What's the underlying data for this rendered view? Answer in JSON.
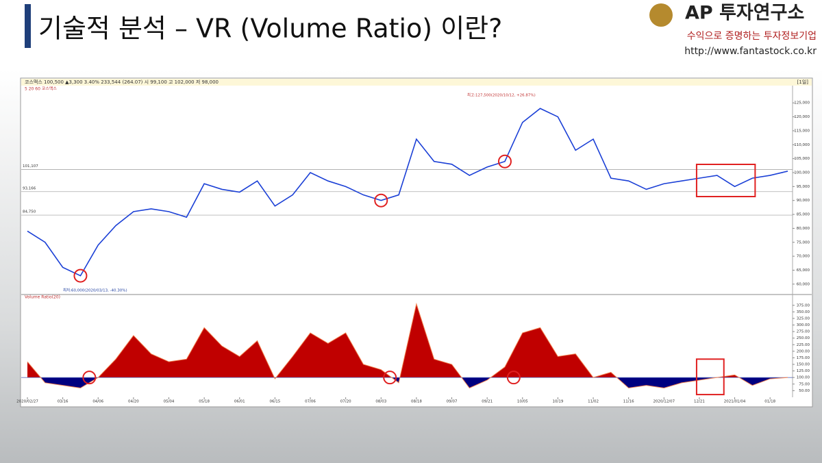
{
  "slide": {
    "title": "기술적 분석 – VR (Volume Ratio) 이란?",
    "logo_name": "AP 투자연구소",
    "logo_tagline": "수익으로 증명하는 투자정보기업",
    "url": "http://www.fantastock.co.kr"
  },
  "chart_data": [
    {
      "type": "line",
      "title": "코스맥스 100,500 ▲3,300 3.40% 233,544 (264.07) 시 99,100 고 102,000 저 98,000",
      "legend": "5 20 60 코스맥스",
      "period": "[1일]",
      "color": "#1a3fd6",
      "values": [
        79000,
        75000,
        66000,
        63000,
        74000,
        81000,
        86000,
        87000,
        86000,
        84000,
        96000,
        94000,
        93000,
        97000,
        88000,
        92000,
        100000,
        97000,
        95000,
        92000,
        90000,
        92000,
        112000,
        104000,
        103000,
        99000,
        102000,
        104000,
        118000,
        123000,
        120000,
        108000,
        112000,
        98000,
        97000,
        94000,
        96000,
        97000,
        98000,
        99000,
        95000,
        98000,
        99000,
        100500
      ],
      "ylim": [
        57500,
        128000
      ],
      "yticks": [
        {
          "value": 60000,
          "label": "60,000"
        },
        {
          "value": 65000,
          "label": "65,000"
        },
        {
          "value": 70000,
          "label": "70,000"
        },
        {
          "value": 75000,
          "label": "75,000"
        },
        {
          "value": 80000,
          "label": "80,000"
        },
        {
          "value": 85000,
          "label": "85,000"
        },
        {
          "value": 90000,
          "label": "90,000"
        },
        {
          "value": 95000,
          "label": "95,000"
        },
        {
          "value": 100000,
          "label": "100,000"
        },
        {
          "value": 105000,
          "label": "105,000"
        },
        {
          "value": 110000,
          "label": "110,000"
        },
        {
          "value": 115000,
          "label": "115,000"
        },
        {
          "value": 120000,
          "label": "120,000"
        },
        {
          "value": 125000,
          "label": "125,000"
        }
      ],
      "reference_lines": [
        {
          "value": 101107,
          "label": "101,107"
        },
        {
          "value": 93166,
          "label": "93,166"
        },
        {
          "value": 84750,
          "label": "84,750"
        }
      ],
      "annotations": [
        "최고:127,500(2020/10/12, +26.87%)",
        "최저:60,000(2020/03/13, -40.30%)"
      ]
    },
    {
      "type": "area",
      "title": "Volume Ratio(20)",
      "color": "#f08050",
      "above_color": "#c00000",
      "below_color": "#000080",
      "baseline": 100,
      "categories": [
        "2020/02/27",
        null,
        "03/16",
        null,
        "04/06",
        null,
        "04/20",
        null,
        "05/04",
        null,
        "05/18",
        null,
        "06/01",
        null,
        "06/15",
        null,
        "07/06",
        null,
        "07/20",
        null,
        "08/03",
        null,
        "08/18",
        null,
        "09/07",
        null,
        "09/21",
        null,
        "10/05",
        null,
        "10/19",
        null,
        "11/02",
        null,
        "11/16",
        null,
        "2020/12/07",
        null,
        "12/21",
        null,
        "2021/01/04",
        null,
        "01/18",
        null
      ],
      "values": [
        160,
        80,
        70,
        60,
        100,
        170,
        260,
        190,
        160,
        170,
        290,
        220,
        180,
        240,
        95,
        180,
        270,
        230,
        270,
        150,
        130,
        80,
        380,
        170,
        150,
        60,
        90,
        140,
        270,
        290,
        180,
        190,
        100,
        120,
        60,
        70,
        60,
        80,
        90,
        100,
        110,
        70,
        95,
        100
      ],
      "ylim": [
        30,
        390
      ],
      "yticks": [
        {
          "value": 50,
          "label": "50.00"
        },
        {
          "value": 75,
          "label": "75.00"
        },
        {
          "value": 100,
          "label": "100.00"
        },
        {
          "value": 125,
          "label": "125.00"
        },
        {
          "value": 150,
          "label": "150.00"
        },
        {
          "value": 175,
          "label": "175.00"
        },
        {
          "value": 200,
          "label": "200.00"
        },
        {
          "value": 225,
          "label": "225.00"
        },
        {
          "value": 250,
          "label": "250.00"
        },
        {
          "value": 275,
          "label": "275.00"
        },
        {
          "value": 300,
          "label": "300.00"
        },
        {
          "value": 325,
          "label": "325.00"
        },
        {
          "value": 350,
          "label": "350.00"
        },
        {
          "value": 375,
          "label": "375.00"
        }
      ]
    }
  ]
}
